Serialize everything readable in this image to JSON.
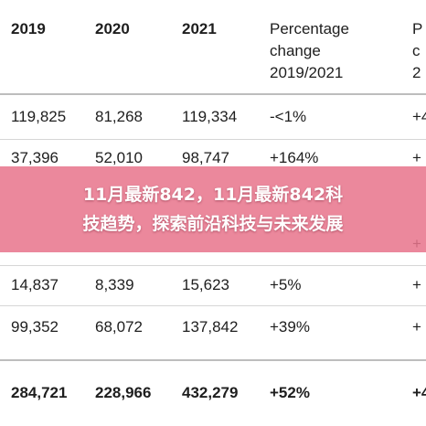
{
  "table": {
    "headers": [
      "2019",
      "2020",
      "2021",
      "Percentage change 2019/2021",
      "Percentage change"
    ],
    "header_visible": {
      "c3_line1": "Percentage",
      "c3_line2": "change",
      "c3_line3": "2019/2021",
      "c4_line1": "P",
      "c4_line2": "c",
      "c4_line3": "2"
    },
    "rows": [
      [
        "119,825",
        "81,268",
        "119,334",
        "-<1%",
        "+4"
      ],
      [
        "37,396",
        "52,010",
        "98,747",
        "+164%",
        "+"
      ],
      [
        "",
        "",
        "",
        "",
        "+"
      ],
      [
        "14,837",
        "8,339",
        "15,623",
        "+5%",
        "+"
      ],
      [
        "99,352",
        "68,072",
        "137,842",
        "+39%",
        "+"
      ]
    ],
    "total": [
      "284,721",
      "228,966",
      "432,279",
      "+52%",
      "+4"
    ]
  },
  "banner": {
    "line1": "11月最新842，11月最新842科",
    "line2": "技趋势，探索前沿科技与未来发展",
    "color": "#e8748c"
  }
}
